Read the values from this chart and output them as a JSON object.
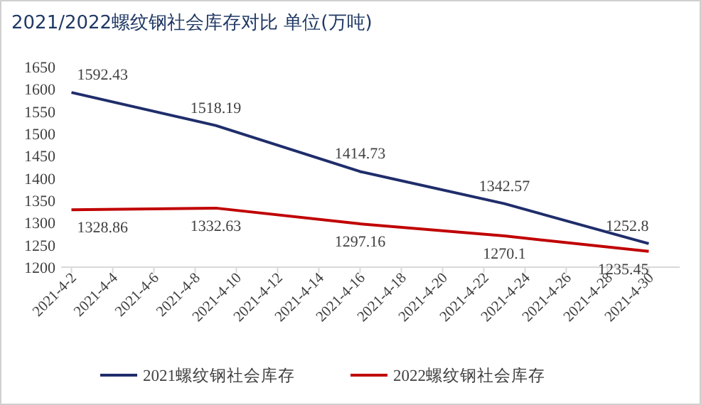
{
  "chart_data": {
    "type": "line",
    "title": "2021/2022螺纹钢社会库存对比 单位(万吨)",
    "x": [
      "2021-04-02",
      "2021-04-09",
      "2021-04-16",
      "2021-04-23",
      "2021-04-30"
    ],
    "series": [
      {
        "name": "2021螺纹钢社会库存",
        "color": "#1f2d6b",
        "values": [
          1592.43,
          1518.19,
          1414.73,
          1342.57,
          1252.8
        ]
      },
      {
        "name": "2022螺纹钢社会库存",
        "color": "#c00000",
        "values": [
          1328.86,
          1332.63,
          1297.16,
          1270.1,
          1235.45
        ]
      }
    ],
    "xlim": [
      "2021-04-01T12:00",
      "2021-05-01T12:00"
    ],
    "xticks": [
      {
        "value": "2021-04-02",
        "label": "2021-4-2"
      },
      {
        "value": "2021-04-04",
        "label": "2021-4-4"
      },
      {
        "value": "2021-04-06",
        "label": "2021-4-6"
      },
      {
        "value": "2021-04-08",
        "label": "2021-4-8"
      },
      {
        "value": "2021-04-10",
        "label": "2021-4-10"
      },
      {
        "value": "2021-04-12",
        "label": "2021-4-12"
      },
      {
        "value": "2021-04-14",
        "label": "2021-4-14"
      },
      {
        "value": "2021-04-16",
        "label": "2021-4-16"
      },
      {
        "value": "2021-04-18",
        "label": "2021-4-18"
      },
      {
        "value": "2021-04-20",
        "label": "2021-4-20"
      },
      {
        "value": "2021-04-22",
        "label": "2021-4-22"
      },
      {
        "value": "2021-04-24",
        "label": "2021-4-24"
      },
      {
        "value": "2021-04-26",
        "label": "2021-4-26"
      },
      {
        "value": "2021-04-28",
        "label": "2021-4-28"
      },
      {
        "value": "2021-04-30",
        "label": "2021-4-30"
      }
    ],
    "ylim": [
      1200,
      1650
    ],
    "yticks": [
      1200,
      1250,
      1300,
      1350,
      1400,
      1450,
      1500,
      1550,
      1600,
      1650
    ],
    "data_labels": true,
    "grid": false,
    "legend": "bottom",
    "marker": "none",
    "line_style": "solid"
  }
}
